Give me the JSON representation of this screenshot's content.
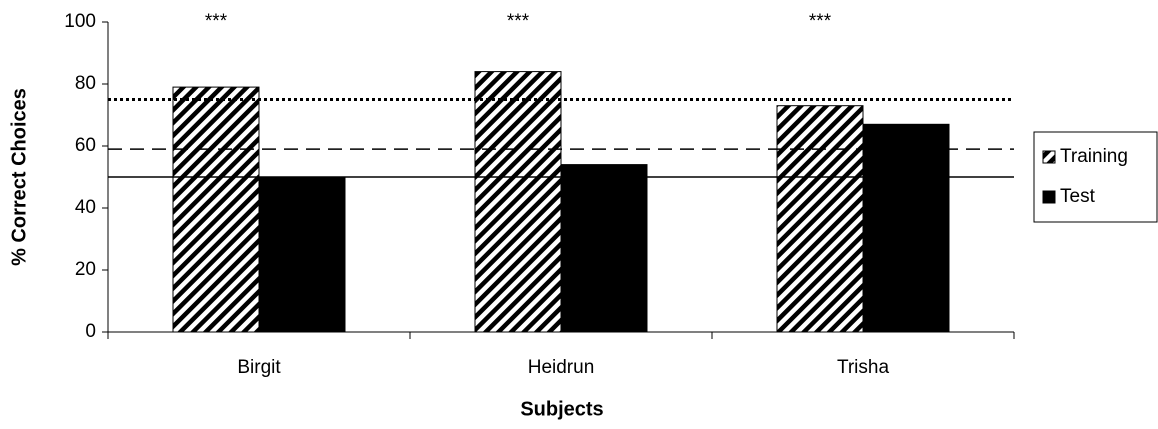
{
  "chart_data": {
    "type": "bar",
    "x_label": "Subjects",
    "y_label": "% Correct Choices",
    "categories": [
      "Birgit",
      "Heidrun",
      "Trisha"
    ],
    "series": [
      {
        "name": "Training",
        "color": "#000000",
        "pattern": "hatch",
        "values": [
          79,
          84,
          73
        ]
      },
      {
        "name": "Test",
        "color": "#000000",
        "pattern": "solid",
        "values": [
          50,
          54,
          67
        ]
      }
    ],
    "annotations": [
      "***",
      "***",
      "***"
    ],
    "reference_lines": [
      {
        "value": 75,
        "style": "dotted"
      },
      {
        "value": 59,
        "style": "dashed"
      },
      {
        "value": 50,
        "style": "solid"
      }
    ],
    "ylim": [
      0,
      100
    ],
    "yticks": [
      0,
      20,
      40,
      60,
      80,
      100
    ],
    "legend": "right"
  }
}
